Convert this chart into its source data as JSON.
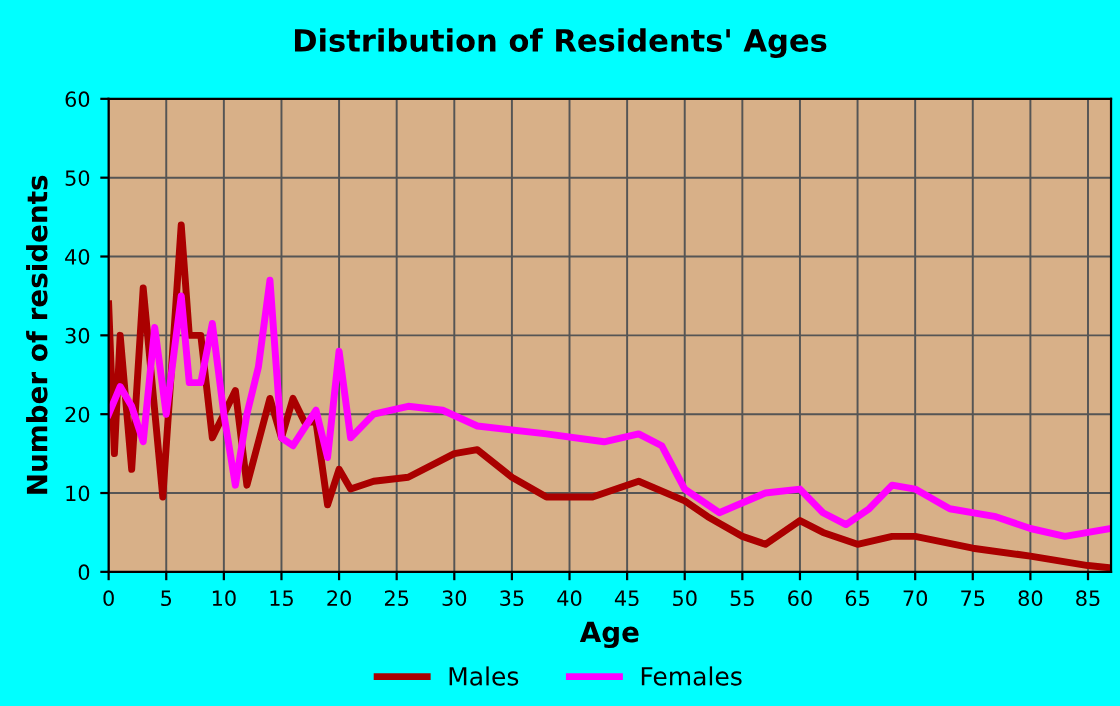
{
  "chart_data": {
    "type": "line",
    "title": "Distribution of Residents' Ages",
    "xlabel": "Age",
    "ylabel": "Number of residents",
    "xlim": [
      0,
      87
    ],
    "xticks": [
      0,
      5,
      10,
      15,
      20,
      25,
      30,
      35,
      40,
      45,
      50,
      55,
      60,
      65,
      70,
      75,
      80,
      85
    ],
    "ylim": [
      0,
      60
    ],
    "yticks": [
      0,
      10,
      20,
      30,
      40,
      50,
      60
    ],
    "grid": true,
    "legend": "bottom",
    "series": [
      {
        "name": "Males",
        "color": "#aa0000",
        "x": [
          0,
          0.5,
          1,
          2,
          3,
          4.7,
          6.3,
          7,
          8,
          9,
          11,
          12,
          14,
          15,
          16,
          17,
          18,
          19,
          20,
          21,
          23,
          26,
          30,
          32,
          35,
          38,
          42,
          46,
          50,
          52,
          55,
          57,
          60,
          62,
          65,
          68,
          70,
          75,
          80,
          85,
          87
        ],
        "values": [
          34,
          15,
          30,
          13,
          36,
          9.5,
          44,
          30,
          30,
          17,
          23,
          11,
          22,
          17,
          22,
          19,
          19,
          8.5,
          13,
          10.5,
          11.5,
          12,
          15,
          15.5,
          12,
          9.5,
          9.5,
          11.5,
          9,
          7,
          4.5,
          3.5,
          6.5,
          5,
          3.5,
          4.5,
          4.5,
          3,
          2,
          0.8,
          0.5
        ]
      },
      {
        "name": "Females",
        "color": "#ff00ff",
        "x": [
          0,
          1,
          2,
          3,
          4,
          5,
          6.3,
          7,
          8,
          9,
          10,
          11,
          12,
          13,
          14,
          15,
          16,
          18,
          19,
          20,
          21,
          23,
          26,
          29,
          32,
          38,
          43,
          46,
          48,
          50,
          53,
          57,
          60,
          62,
          64,
          66,
          68,
          70,
          73,
          77,
          80,
          83,
          87
        ],
        "values": [
          20,
          23.5,
          21,
          16.5,
          31,
          20,
          35,
          24,
          24,
          31.5,
          20,
          11,
          20,
          26,
          37,
          17,
          16,
          20.5,
          14.5,
          28,
          17,
          20,
          21,
          20.5,
          18.5,
          17.5,
          16.5,
          17.5,
          16,
          10.5,
          7.5,
          10,
          10.5,
          7.5,
          6,
          8,
          11,
          10.5,
          8,
          7,
          5.5,
          4.5,
          5.5
        ]
      }
    ]
  }
}
